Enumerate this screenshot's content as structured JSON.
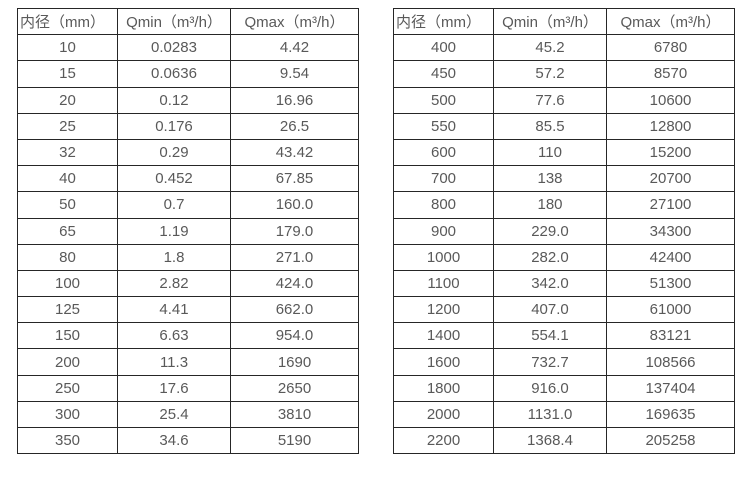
{
  "colors": {
    "background": "#ffffff",
    "border": "#262626",
    "text": "#595959"
  },
  "tables": {
    "left": {
      "headers": [
        "内径（mm）",
        "Qmin（m³/h）",
        "Qmax（m³/h）"
      ],
      "rows": [
        [
          "10",
          "0.0283",
          "4.42"
        ],
        [
          "15",
          "0.0636",
          "9.54"
        ],
        [
          "20",
          "0.12",
          "16.96"
        ],
        [
          "25",
          "0.176",
          "26.5"
        ],
        [
          "32",
          "0.29",
          "43.42"
        ],
        [
          "40",
          "0.452",
          "67.85"
        ],
        [
          "50",
          "0.7",
          "160.0"
        ],
        [
          "65",
          "1.19",
          "179.0"
        ],
        [
          "80",
          "1.8",
          "271.0"
        ],
        [
          "100",
          "2.82",
          "424.0"
        ],
        [
          "125",
          "4.41",
          "662.0"
        ],
        [
          "150",
          "6.63",
          "954.0"
        ],
        [
          "200",
          "11.3",
          "1690"
        ],
        [
          "250",
          "17.6",
          "2650"
        ],
        [
          "300",
          "25.4",
          "3810"
        ],
        [
          "350",
          "34.6",
          "5190"
        ]
      ]
    },
    "right": {
      "headers": [
        "内径（mm）",
        "Qmin（m³/h）",
        "Qmax（m³/h）"
      ],
      "rows": [
        [
          "400",
          "45.2",
          "6780"
        ],
        [
          "450",
          "57.2",
          "8570"
        ],
        [
          "500",
          "77.6",
          "10600"
        ],
        [
          "550",
          "85.5",
          "12800"
        ],
        [
          "600",
          "110",
          "15200"
        ],
        [
          "700",
          "138",
          "20700"
        ],
        [
          "800",
          "180",
          "27100"
        ],
        [
          "900",
          "229.0",
          "34300"
        ],
        [
          "1000",
          "282.0",
          "42400"
        ],
        [
          "1100",
          "342.0",
          "51300"
        ],
        [
          "1200",
          "407.0",
          "61000"
        ],
        [
          "1400",
          "554.1",
          "83121"
        ],
        [
          "1600",
          "732.7",
          "108566"
        ],
        [
          "1800",
          "916.0",
          "137404"
        ],
        [
          "2000",
          "1131.0",
          "169635"
        ],
        [
          "2200",
          "1368.4",
          "205258"
        ]
      ]
    }
  }
}
